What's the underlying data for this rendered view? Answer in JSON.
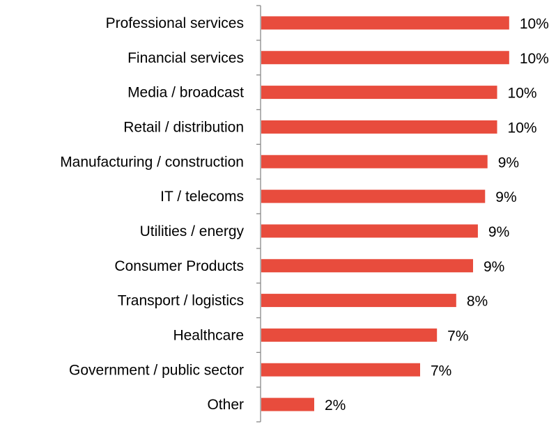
{
  "chart_data": {
    "type": "bar",
    "orientation": "horizontal",
    "categories": [
      "Professional services ",
      "Financial services",
      "Media / broadcast",
      "Retail / distribution",
      "Manufacturing / construction",
      "IT / telecoms",
      "Utilities / energy",
      "Consumer Products",
      "Transport / logistics",
      "Healthcare",
      "Government / public sector",
      "Other"
    ],
    "values": [
      10.3,
      10.3,
      9.8,
      9.8,
      9.4,
      9.3,
      9.0,
      8.8,
      8.1,
      7.3,
      6.6,
      2.2
    ],
    "value_labels": [
      "10%",
      "10%",
      "10%",
      "10%",
      "9%",
      "9%",
      "9%",
      "9%",
      "8%",
      "7%",
      "7%",
      "2%"
    ],
    "xlim": [
      0,
      11
    ],
    "grid": false,
    "legend": "none",
    "bar_color": "#E84C3D",
    "axis_color": "#888888"
  }
}
